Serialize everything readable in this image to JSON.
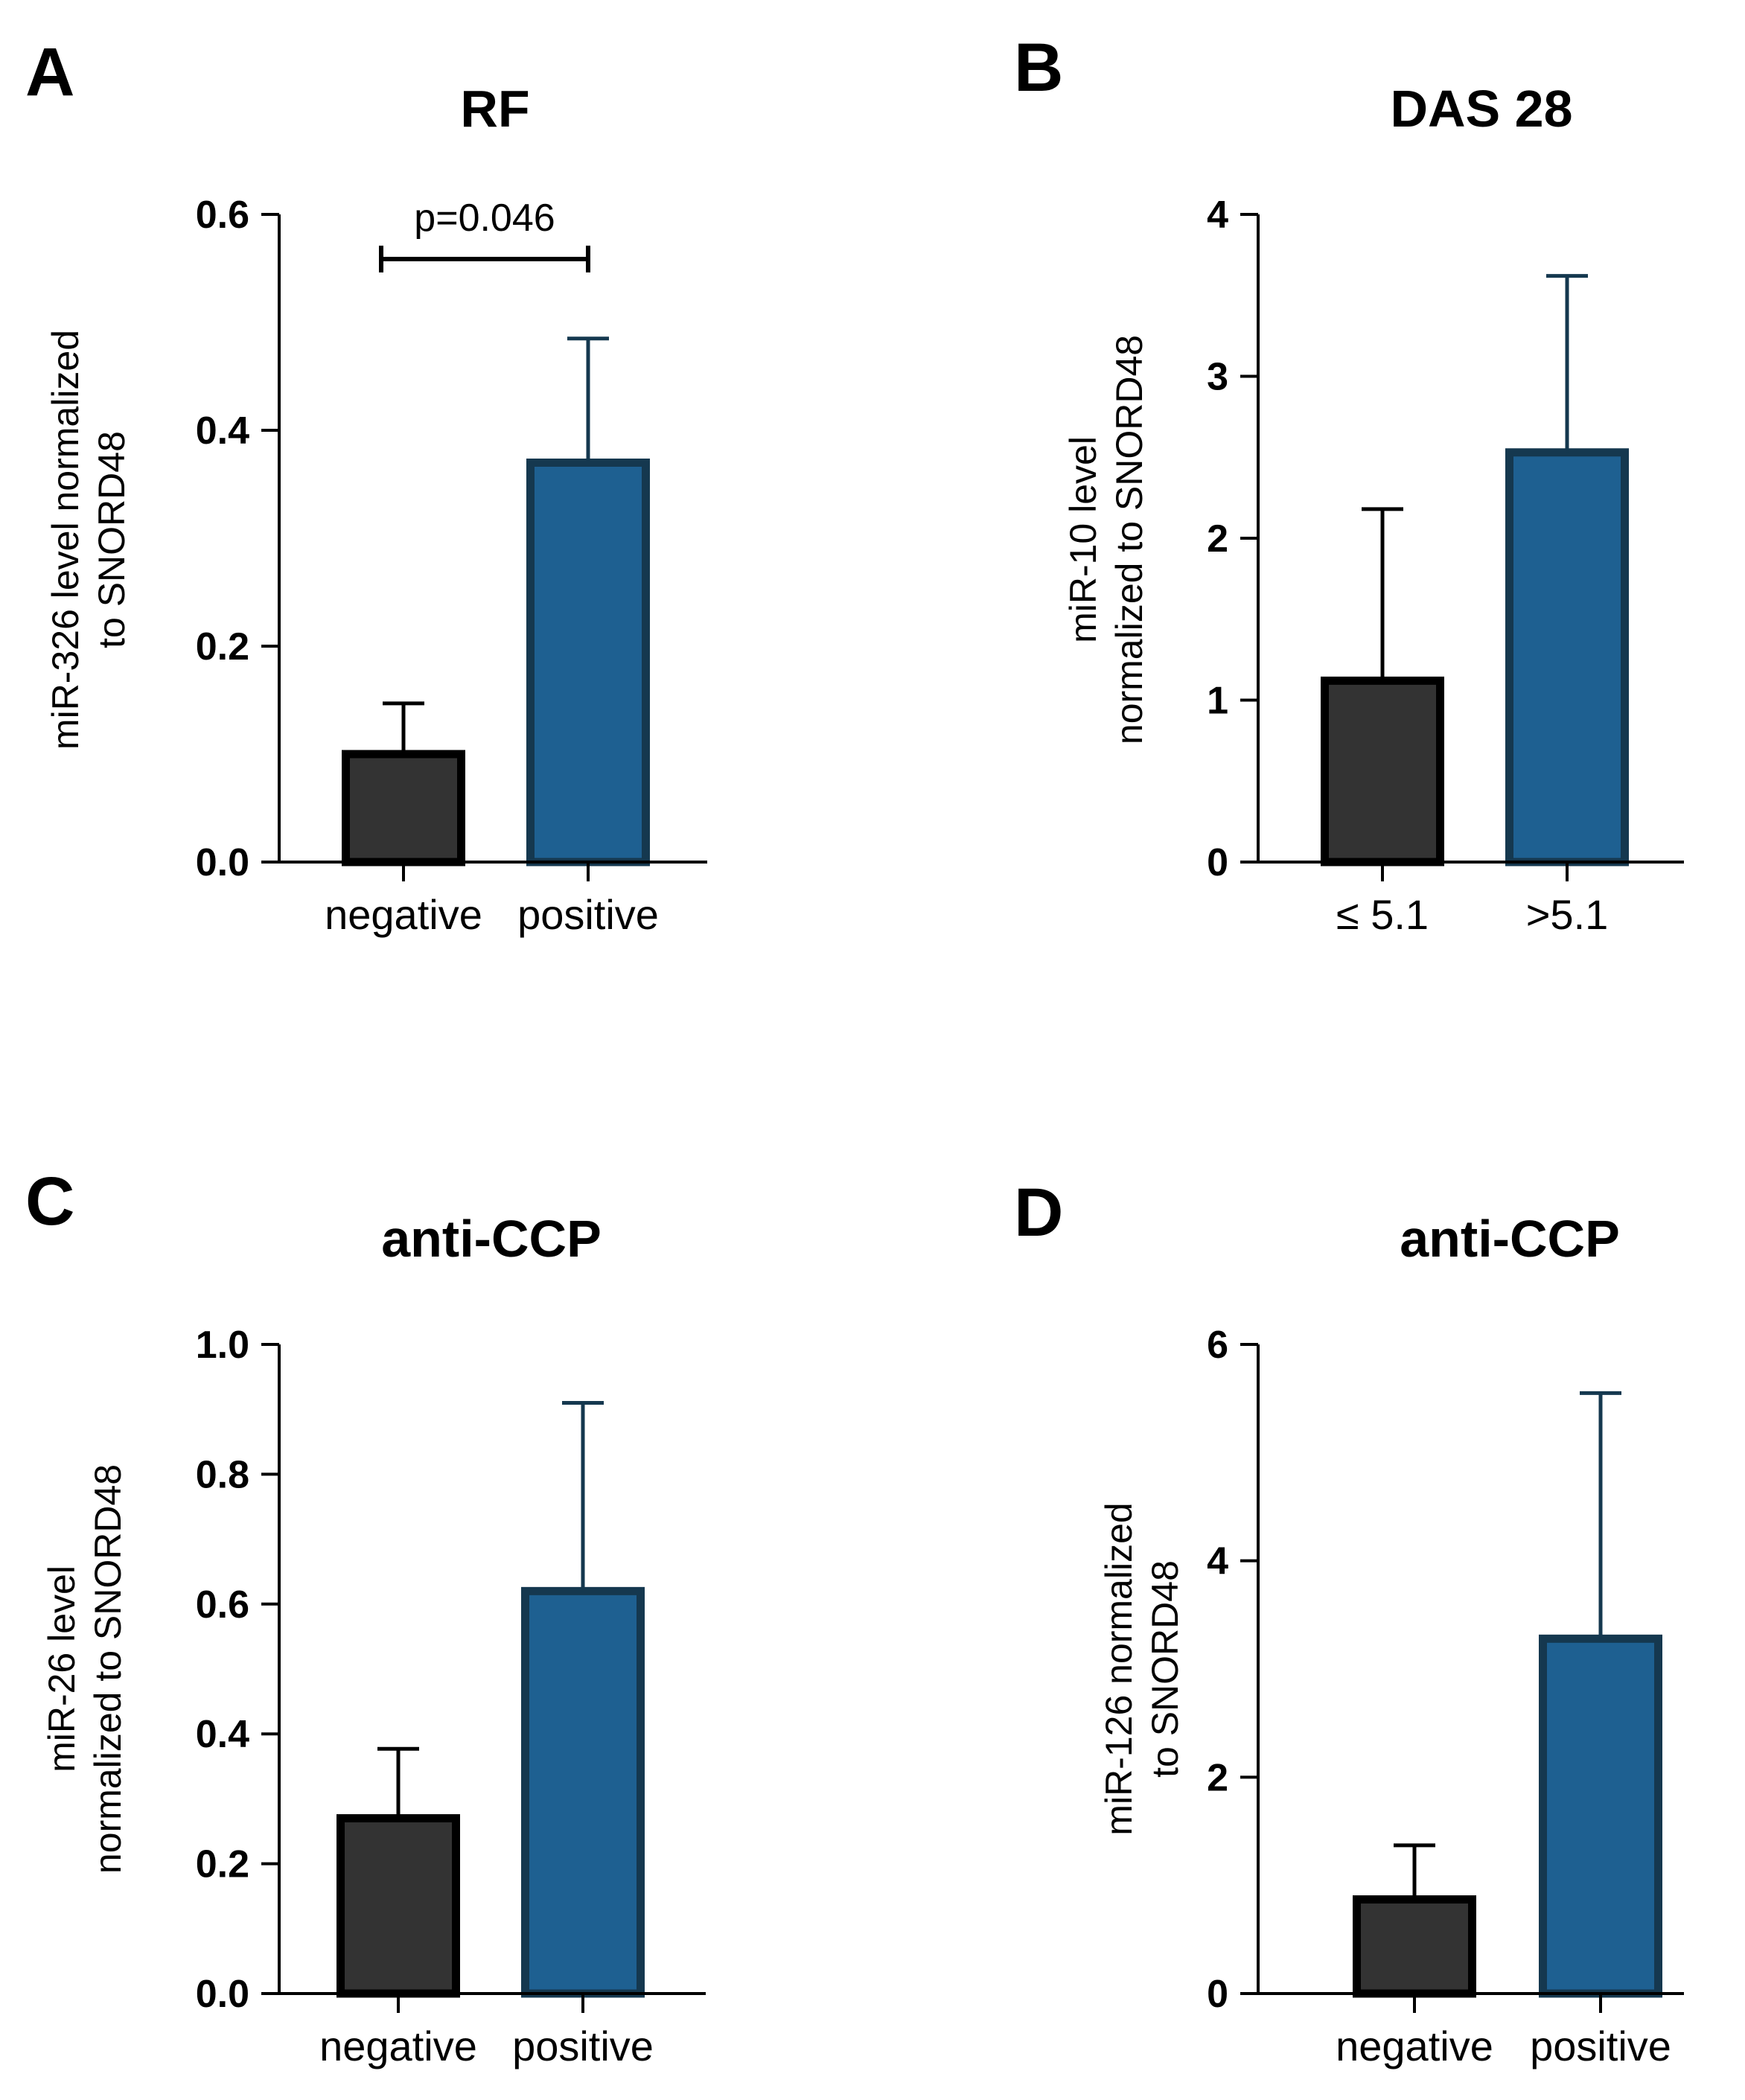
{
  "chart_data": [
    {
      "panel": "A",
      "type": "bar",
      "title": "RF",
      "ylabel": [
        "miR-326 level normalized",
        "to SNORD48"
      ],
      "categories": [
        "negative",
        "positive"
      ],
      "values": [
        0.1,
        0.37
      ],
      "errors": [
        0.047,
        0.115
      ],
      "ylim": [
        0,
        0.6
      ],
      "yticks": [
        "0.0",
        "0.2",
        "0.4",
        "0.6"
      ],
      "annotation": "p=0.046",
      "colors": [
        "#333333",
        "#1e6091"
      ],
      "edge_colors": [
        "#000000",
        "#15384f"
      ]
    },
    {
      "panel": "B",
      "type": "bar",
      "title": "DAS 28",
      "ylabel": [
        "miR-10 level",
        "normalized to SNORD48"
      ],
      "categories": [
        "≤ 5.1",
        ">5.1"
      ],
      "values": [
        1.12,
        2.53
      ],
      "errors": [
        1.06,
        1.09
      ],
      "ylim": [
        0,
        4
      ],
      "yticks": [
        "0",
        "1",
        "2",
        "3",
        "4"
      ],
      "colors": [
        "#333333",
        "#1e6091"
      ],
      "edge_colors": [
        "#000000",
        "#15384f"
      ]
    },
    {
      "panel": "C",
      "type": "bar",
      "title": "anti-CCP",
      "ylabel": [
        "miR-26 level",
        "normalized to SNORD48"
      ],
      "categories": [
        "negative",
        "positive"
      ],
      "values": [
        0.27,
        0.62
      ],
      "errors": [
        0.107,
        0.29
      ],
      "ylim": [
        0,
        1
      ],
      "yticks": [
        "0.0",
        "0.2",
        "0.4",
        "0.6",
        "0.8",
        "1.0"
      ],
      "colors": [
        "#333333",
        "#1e6091"
      ],
      "edge_colors": [
        "#000000",
        "#15384f"
      ]
    },
    {
      "panel": "D",
      "type": "bar",
      "title": "anti-CCP",
      "ylabel": [
        "miR-126 normalized",
        "to SNORD48"
      ],
      "categories": [
        "negative",
        "positive"
      ],
      "values": [
        0.87,
        3.28
      ],
      "errors": [
        0.5,
        2.27
      ],
      "ylim": [
        0,
        6
      ],
      "yticks": [
        "0",
        "2",
        "4",
        "6"
      ],
      "colors": [
        "#333333",
        "#1e6091"
      ],
      "edge_colors": [
        "#000000",
        "#15384f"
      ]
    }
  ]
}
